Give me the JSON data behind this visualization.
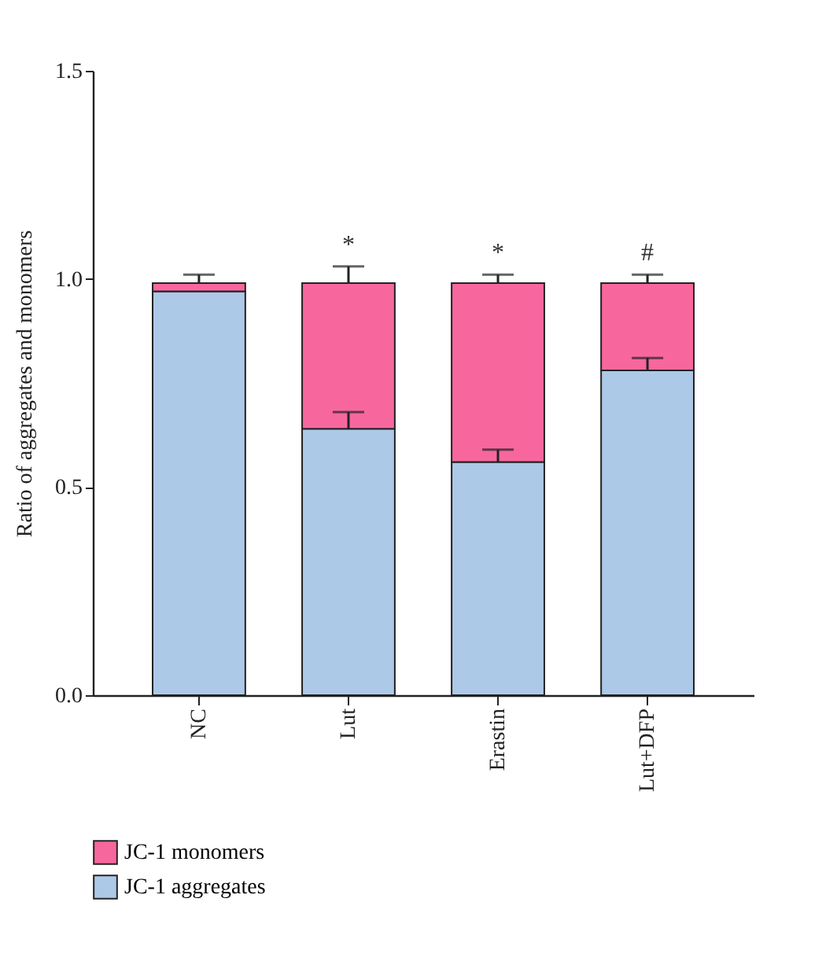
{
  "chart_data": {
    "type": "bar",
    "stacked": true,
    "ylabel": "Ratio of aggregates and monomers",
    "categories": [
      "NC",
      "Lut",
      "Erastin",
      "Lut+DFP"
    ],
    "series": [
      {
        "name": "JC-1 aggregates",
        "color": "#adc9e8",
        "values": [
          0.97,
          0.64,
          0.56,
          0.78
        ],
        "errors": [
          null,
          0.04,
          0.03,
          0.03
        ]
      },
      {
        "name": "JC-1 monomers",
        "color": "#f7679e",
        "values": [
          0.02,
          0.35,
          0.43,
          0.21
        ],
        "errors": [
          0.02,
          0.04,
          0.02,
          0.02
        ]
      }
    ],
    "ylim": [
      0,
      1.5
    ],
    "yticks": [
      {
        "value": 0,
        "label": "0.0"
      },
      {
        "value": 0.5,
        "label": "0.5"
      },
      {
        "value": 1,
        "label": "1.0"
      },
      {
        "value": 1.5,
        "label": "1.5"
      }
    ],
    "annotations": [
      "*",
      "*",
      "#"
    ],
    "grid": false,
    "legend": "bottom left"
  }
}
